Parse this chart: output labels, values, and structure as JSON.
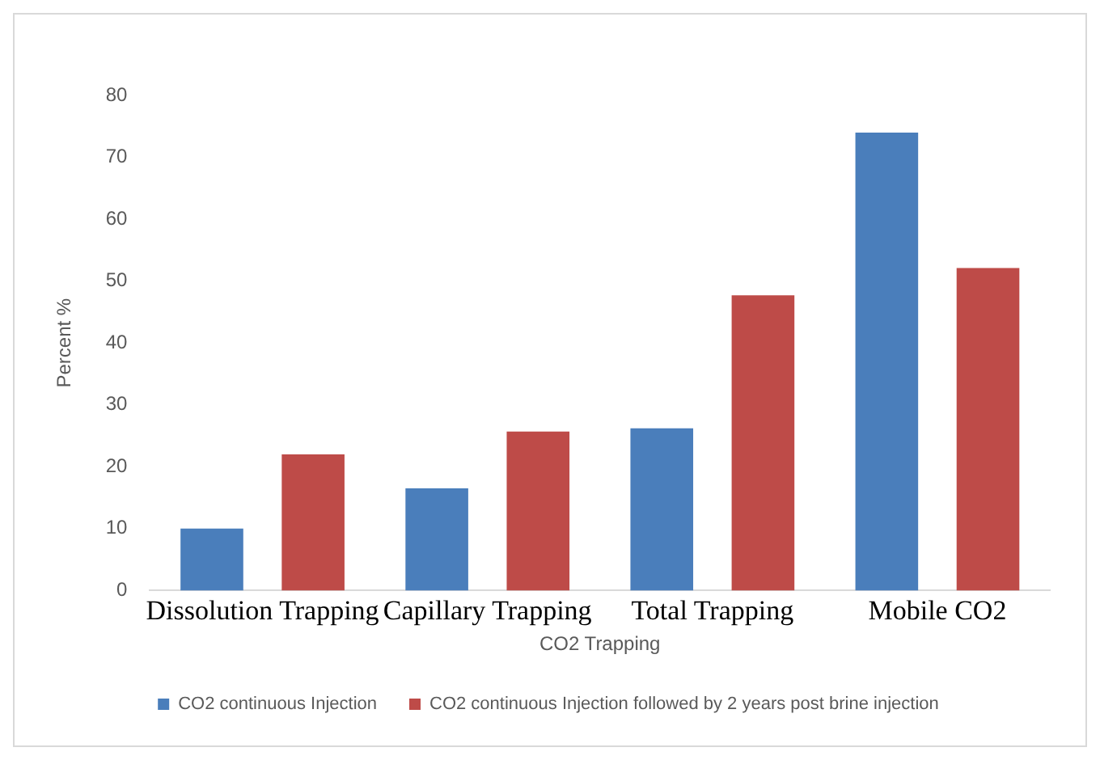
{
  "chart_data": {
    "type": "bar",
    "xlabel": "CO2 Trapping",
    "ylabel": "Percent %",
    "categories": [
      "Dissolution Trapping",
      "Capillary Trapping",
      "Total Trapping",
      "Mobile CO2"
    ],
    "series": [
      {
        "name": "CO2 continuous Injection",
        "color": "#4a7ebb",
        "values": [
          10,
          16.5,
          26.2,
          74
        ]
      },
      {
        "name": "CO2 continuous Injection followed by 2 years post brine injection",
        "color": "#be4b48",
        "values": [
          22,
          25.7,
          47.7,
          52.1
        ]
      }
    ],
    "ylim": [
      0,
      80
    ],
    "yticks": [
      0,
      10,
      20,
      30,
      40,
      50,
      60,
      70,
      80
    ],
    "grid": false,
    "legend": "bottom"
  }
}
